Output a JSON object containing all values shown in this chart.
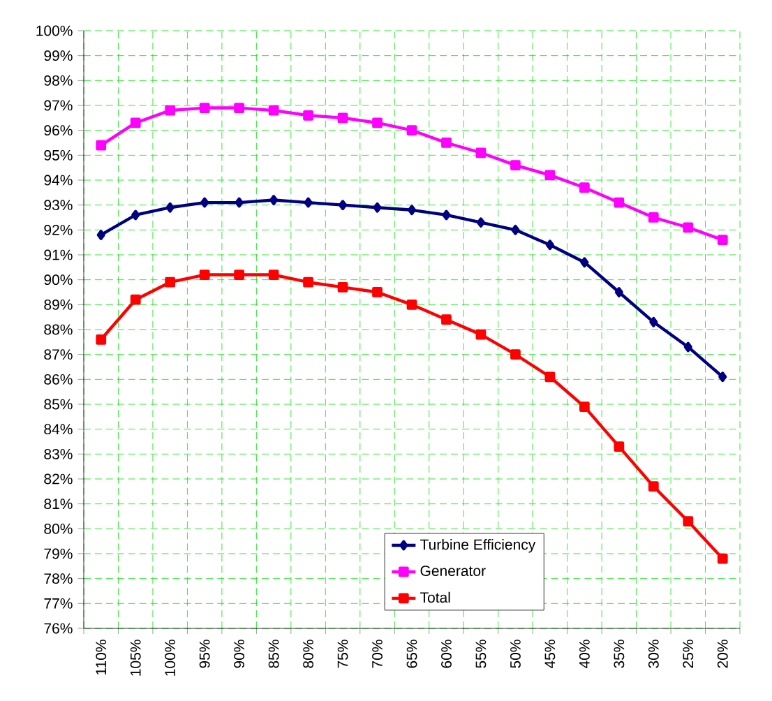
{
  "chart_data": {
    "type": "line",
    "categories": [
      "110%",
      "105%",
      "100%",
      "95%",
      "90%",
      "85%",
      "80%",
      "75%",
      "70%",
      "65%",
      "60%",
      "55%",
      "50%",
      "45%",
      "40%",
      "35%",
      "30%",
      "25%",
      "20%"
    ],
    "series": [
      {
        "name": "Turbine Efficiency",
        "color": "#000080",
        "marker": "diamond",
        "values": [
          91.8,
          92.6,
          92.9,
          93.1,
          93.1,
          93.2,
          93.1,
          93.0,
          92.9,
          92.8,
          92.6,
          92.3,
          92.0,
          91.4,
          90.7,
          89.5,
          88.3,
          87.3,
          86.1
        ]
      },
      {
        "name": "Generator",
        "color": "#ff00ff",
        "marker": "square",
        "values": [
          95.4,
          96.3,
          96.8,
          96.9,
          96.9,
          96.8,
          96.6,
          96.5,
          96.3,
          96.0,
          95.5,
          95.1,
          94.6,
          94.2,
          93.7,
          93.1,
          92.5,
          92.1,
          91.6
        ]
      },
      {
        "name": "Total",
        "color": "#ff0000",
        "marker": "square",
        "values": [
          87.6,
          89.2,
          89.9,
          90.2,
          90.2,
          90.2,
          89.9,
          89.7,
          89.5,
          89.0,
          88.4,
          87.8,
          87.0,
          86.1,
          84.9,
          83.3,
          81.7,
          80.3,
          78.8
        ]
      }
    ],
    "ylim": [
      76,
      100
    ],
    "yticks": [
      {
        "value": 76,
        "label": "76%"
      },
      {
        "value": 77,
        "label": "77%"
      },
      {
        "value": 78,
        "label": "78%"
      },
      {
        "value": 79,
        "label": "79%"
      },
      {
        "value": 80,
        "label": "80%"
      },
      {
        "value": 81,
        "label": "81%"
      },
      {
        "value": 82,
        "label": "82%"
      },
      {
        "value": 83,
        "label": "83%"
      },
      {
        "value": 84,
        "label": "84%"
      },
      {
        "value": 85,
        "label": "85%"
      },
      {
        "value": 86,
        "label": "86%"
      },
      {
        "value": 87,
        "label": "87%"
      },
      {
        "value": 88,
        "label": "88%"
      },
      {
        "value": 89,
        "label": "89%"
      },
      {
        "value": 90,
        "label": "90%"
      },
      {
        "value": 91,
        "label": "91%"
      },
      {
        "value": 92,
        "label": "92%"
      },
      {
        "value": 93,
        "label": "93%"
      },
      {
        "value": 94,
        "label": "94%"
      },
      {
        "value": 95,
        "label": "95%"
      },
      {
        "value": 96,
        "label": "96%"
      },
      {
        "value": 97,
        "label": "97%"
      },
      {
        "value": 98,
        "label": "98%"
      },
      {
        "value": 99,
        "label": "99%"
      },
      {
        "value": 100,
        "label": "100%"
      }
    ],
    "grid": true,
    "legend": "bottom",
    "line_style": "solid"
  }
}
